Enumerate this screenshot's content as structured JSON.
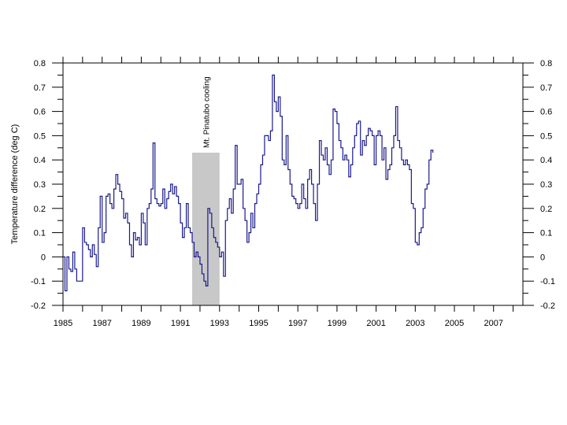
{
  "chart_data": {
    "type": "line",
    "title": "",
    "xlabel": "",
    "ylabel": "Temperature difference (deg C)",
    "xlim": [
      1985,
      2008.5
    ],
    "ylim": [
      -0.2,
      0.8
    ],
    "grid": false,
    "line_color": "#1a1a8c",
    "shade_color": "#c8c8c8",
    "x_ticks": [
      "1985",
      "1987",
      "1989",
      "1991",
      "1993",
      "1995",
      "1997",
      "1999",
      "2001",
      "2003",
      "2005",
      "2007"
    ],
    "y_ticks_left": [
      "0.8",
      "0.7",
      "0.6",
      "0.5",
      "0.4",
      "0.3",
      "0.2",
      "0.1",
      "0",
      "-0.1",
      "-0.2"
    ],
    "y_ticks_right": [
      "0.8",
      "0.7",
      "0.6",
      "0.5",
      "0.4",
      "0.3",
      "0.2",
      "0.1",
      "0",
      "-0.1",
      "-0.2"
    ],
    "annotation": {
      "text": "Mt. Pinatubo cooling",
      "x_start": 1991.6,
      "x_end": 1993.0
    },
    "series": [
      {
        "points": [
          [
            1985.0,
            0.0
          ],
          [
            1985.1,
            -0.14
          ],
          [
            1985.2,
            0.0
          ],
          [
            1985.3,
            -0.05
          ],
          [
            1985.4,
            -0.06
          ],
          [
            1985.5,
            0.02
          ],
          [
            1985.6,
            -0.05
          ],
          [
            1985.7,
            -0.1
          ],
          [
            1986.0,
            0.12
          ],
          [
            1986.1,
            0.06
          ],
          [
            1986.2,
            0.05
          ],
          [
            1986.3,
            0.03
          ],
          [
            1986.4,
            0.0
          ],
          [
            1986.5,
            0.05
          ],
          [
            1986.6,
            0.01
          ],
          [
            1986.7,
            -0.04
          ],
          [
            1986.8,
            0.12
          ],
          [
            1986.9,
            0.25
          ],
          [
            1987.0,
            0.06
          ],
          [
            1987.1,
            0.1
          ],
          [
            1987.2,
            0.25
          ],
          [
            1987.3,
            0.26
          ],
          [
            1987.4,
            0.22
          ],
          [
            1987.5,
            0.2
          ],
          [
            1987.6,
            0.28
          ],
          [
            1987.7,
            0.34
          ],
          [
            1987.8,
            0.3
          ],
          [
            1987.9,
            0.27
          ],
          [
            1988.0,
            0.24
          ],
          [
            1988.1,
            0.16
          ],
          [
            1988.2,
            0.18
          ],
          [
            1988.3,
            0.14
          ],
          [
            1988.4,
            0.05
          ],
          [
            1988.5,
            0.0
          ],
          [
            1988.6,
            0.1
          ],
          [
            1988.7,
            0.07
          ],
          [
            1988.8,
            0.08
          ],
          [
            1988.9,
            0.05
          ],
          [
            1989.0,
            0.18
          ],
          [
            1989.1,
            0.14
          ],
          [
            1989.2,
            0.05
          ],
          [
            1989.3,
            0.2
          ],
          [
            1989.4,
            0.22
          ],
          [
            1989.5,
            0.28
          ],
          [
            1989.6,
            0.47
          ],
          [
            1989.7,
            0.24
          ],
          [
            1989.8,
            0.22
          ],
          [
            1989.9,
            0.21
          ],
          [
            1990.0,
            0.22
          ],
          [
            1990.1,
            0.28
          ],
          [
            1990.2,
            0.2
          ],
          [
            1990.3,
            0.24
          ],
          [
            1990.4,
            0.27
          ],
          [
            1990.5,
            0.3
          ],
          [
            1990.6,
            0.26
          ],
          [
            1990.7,
            0.29
          ],
          [
            1990.8,
            0.25
          ],
          [
            1990.9,
            0.22
          ],
          [
            1991.0,
            0.14
          ],
          [
            1991.1,
            0.08
          ],
          [
            1991.2,
            0.12
          ],
          [
            1991.3,
            0.22
          ],
          [
            1991.4,
            0.12
          ],
          [
            1991.5,
            0.1
          ],
          [
            1991.6,
            0.06
          ],
          [
            1991.7,
            0.0
          ],
          [
            1991.8,
            0.02
          ],
          [
            1991.9,
            0.0
          ],
          [
            1992.0,
            -0.03
          ],
          [
            1992.1,
            -0.07
          ],
          [
            1992.2,
            -0.1
          ],
          [
            1992.3,
            -0.12
          ],
          [
            1992.4,
            0.2
          ],
          [
            1992.5,
            0.18
          ],
          [
            1992.6,
            0.12
          ],
          [
            1992.7,
            0.08
          ],
          [
            1992.8,
            0.06
          ],
          [
            1992.9,
            0.04
          ],
          [
            1993.0,
            0.0
          ],
          [
            1993.1,
            0.02
          ],
          [
            1993.2,
            -0.08
          ],
          [
            1993.3,
            0.15
          ],
          [
            1993.4,
            0.2
          ],
          [
            1993.5,
            0.24
          ],
          [
            1993.6,
            0.18
          ],
          [
            1993.7,
            0.28
          ],
          [
            1993.8,
            0.46
          ],
          [
            1993.9,
            0.3
          ],
          [
            1994.0,
            0.3
          ],
          [
            1994.1,
            0.32
          ],
          [
            1994.2,
            0.2
          ],
          [
            1994.3,
            0.15
          ],
          [
            1994.4,
            0.06
          ],
          [
            1994.5,
            0.1
          ],
          [
            1994.6,
            0.18
          ],
          [
            1994.7,
            0.12
          ],
          [
            1994.8,
            0.22
          ],
          [
            1994.9,
            0.26
          ],
          [
            1995.0,
            0.3
          ],
          [
            1995.1,
            0.38
          ],
          [
            1995.2,
            0.42
          ],
          [
            1995.3,
            0.5
          ],
          [
            1995.4,
            0.5
          ],
          [
            1995.5,
            0.48
          ],
          [
            1995.6,
            0.52
          ],
          [
            1995.7,
            0.75
          ],
          [
            1995.8,
            0.64
          ],
          [
            1995.9,
            0.6
          ],
          [
            1996.0,
            0.66
          ],
          [
            1996.1,
            0.58
          ],
          [
            1996.2,
            0.4
          ],
          [
            1996.3,
            0.38
          ],
          [
            1996.4,
            0.5
          ],
          [
            1996.5,
            0.36
          ],
          [
            1996.6,
            0.3
          ],
          [
            1996.7,
            0.25
          ],
          [
            1996.8,
            0.24
          ],
          [
            1996.9,
            0.22
          ],
          [
            1997.0,
            0.2
          ],
          [
            1997.1,
            0.22
          ],
          [
            1997.2,
            0.3
          ],
          [
            1997.3,
            0.24
          ],
          [
            1997.4,
            0.2
          ],
          [
            1997.5,
            0.32
          ],
          [
            1997.6,
            0.36
          ],
          [
            1997.7,
            0.3
          ],
          [
            1997.8,
            0.22
          ],
          [
            1997.9,
            0.15
          ],
          [
            1998.0,
            0.3
          ],
          [
            1998.1,
            0.48
          ],
          [
            1998.2,
            0.42
          ],
          [
            1998.3,
            0.4
          ],
          [
            1998.4,
            0.45
          ],
          [
            1998.5,
            0.38
          ],
          [
            1998.6,
            0.34
          ],
          [
            1998.7,
            0.4
          ],
          [
            1998.8,
            0.61
          ],
          [
            1998.9,
            0.6
          ],
          [
            1999.0,
            0.55
          ],
          [
            1999.1,
            0.48
          ],
          [
            1999.2,
            0.45
          ],
          [
            1999.3,
            0.4
          ],
          [
            1999.4,
            0.42
          ],
          [
            1999.5,
            0.4
          ],
          [
            1999.6,
            0.33
          ],
          [
            1999.7,
            0.38
          ],
          [
            1999.8,
            0.45
          ],
          [
            1999.9,
            0.5
          ],
          [
            2000.0,
            0.55
          ],
          [
            2000.1,
            0.56
          ],
          [
            2000.2,
            0.42
          ],
          [
            2000.3,
            0.48
          ],
          [
            2000.4,
            0.46
          ],
          [
            2000.5,
            0.5
          ],
          [
            2000.6,
            0.53
          ],
          [
            2000.7,
            0.52
          ],
          [
            2000.8,
            0.5
          ],
          [
            2000.9,
            0.38
          ],
          [
            2001.0,
            0.5
          ],
          [
            2001.1,
            0.52
          ],
          [
            2001.2,
            0.5
          ],
          [
            2001.3,
            0.4
          ],
          [
            2001.4,
            0.45
          ],
          [
            2001.5,
            0.32
          ],
          [
            2001.6,
            0.36
          ],
          [
            2001.7,
            0.38
          ],
          [
            2001.8,
            0.45
          ],
          [
            2001.9,
            0.5
          ],
          [
            2002.0,
            0.62
          ],
          [
            2002.1,
            0.48
          ],
          [
            2002.2,
            0.45
          ],
          [
            2002.3,
            0.4
          ],
          [
            2002.4,
            0.38
          ],
          [
            2002.5,
            0.4
          ],
          [
            2002.6,
            0.38
          ],
          [
            2002.7,
            0.36
          ],
          [
            2002.8,
            0.22
          ],
          [
            2002.9,
            0.2
          ],
          [
            2003.0,
            0.06
          ],
          [
            2003.1,
            0.05
          ],
          [
            2003.2,
            0.1
          ],
          [
            2003.3,
            0.12
          ],
          [
            2003.4,
            0.2
          ],
          [
            2003.5,
            0.28
          ],
          [
            2003.6,
            0.3
          ],
          [
            2003.7,
            0.4
          ],
          [
            2003.8,
            0.44
          ],
          [
            2003.9,
            0.43
          ]
        ]
      }
    ]
  }
}
